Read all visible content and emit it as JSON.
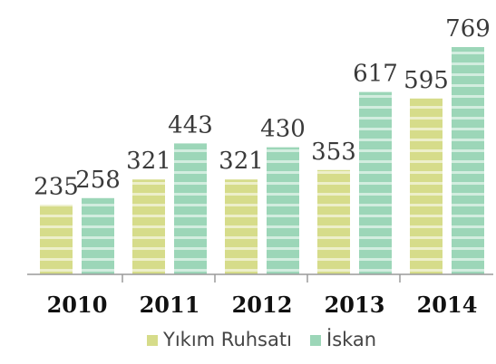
{
  "chart_data": {
    "type": "bar",
    "title": "",
    "xlabel": "",
    "ylabel": "",
    "categories": [
      "2010",
      "2011",
      "2012",
      "2013",
      "2014"
    ],
    "series": [
      {
        "name": "Yıkım Ruhsatı",
        "values": [
          235,
          321,
          321,
          353,
          595
        ],
        "color": "#d6dc8a"
      },
      {
        "name": "İskan",
        "values": [
          258,
          443,
          430,
          617,
          769
        ],
        "color": "#9cd6b8"
      }
    ],
    "ylim": [
      0,
      769
    ],
    "legend_position": "bottom-center"
  }
}
